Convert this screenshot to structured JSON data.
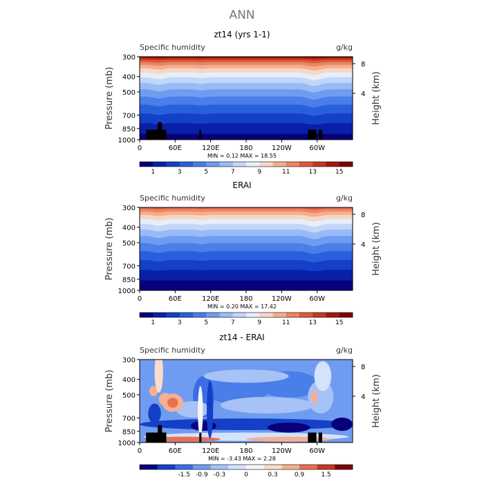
{
  "figure": {
    "title": "ANN"
  },
  "colors": {
    "seq": [
      "#08007a",
      "#0a1fa8",
      "#1440c8",
      "#2a5fdc",
      "#4a7ee8",
      "#6f9cf0",
      "#98bbf6",
      "#c2d6fa",
      "#e8eef8",
      "#f7d7c4",
      "#f2ae90",
      "#ec8563",
      "#dc5a3d",
      "#c53623",
      "#a5160f",
      "#7a0508"
    ],
    "diff": [
      "#08007a",
      "#1440c8",
      "#3c6de6",
      "#6f9cf0",
      "#a7c2f7",
      "#d4e2fb",
      "#f5f5f5",
      "#fadcc9",
      "#f4b093",
      "#e8704f",
      "#c83522",
      "#7a0508"
    ],
    "land": "#000000"
  },
  "labels": {
    "y_left": "Pressure (mb)",
    "y_right": "Height (km)",
    "variable": "Specific humidity",
    "units": "g/kg"
  },
  "chart_data": [
    {
      "type": "heatmap",
      "title": "zt14 (yrs 1-1)",
      "subtitle_left": "Specific humidity",
      "subtitle_right": "g/kg",
      "xlabel": "",
      "ylabel": "Pressure (mb)",
      "ylabel_right": "Height (km)",
      "x_ticks": [
        "0",
        "60E",
        "120E",
        "180",
        "120W",
        "60W"
      ],
      "y_ticks": [
        "300",
        "400",
        "500",
        "700",
        "850",
        "1000"
      ],
      "y_right_ticks": [
        "8",
        "4"
      ],
      "stats": "MIN =    0.12   MAX =   18.55",
      "colorbar_labels": [
        "1",
        "3",
        "5",
        "7",
        "9",
        "11",
        "13",
        "15"
      ],
      "has_land_mask": true,
      "kind": "model"
    },
    {
      "type": "heatmap",
      "title": "ERAI",
      "subtitle_left": "Specific humidity",
      "subtitle_right": "g/kg",
      "xlabel": "",
      "ylabel": "Pressure (mb)",
      "ylabel_right": "Height (km)",
      "x_ticks": [
        "0",
        "60E",
        "120E",
        "180",
        "120W",
        "60W"
      ],
      "y_ticks": [
        "300",
        "400",
        "500",
        "700",
        "850",
        "1000"
      ],
      "y_right_ticks": [
        "8",
        "4"
      ],
      "stats": "MIN =    0.20   MAX =   17.42",
      "colorbar_labels": [
        "1",
        "3",
        "5",
        "7",
        "9",
        "11",
        "13",
        "15"
      ],
      "has_land_mask": false,
      "kind": "obs"
    },
    {
      "type": "heatmap",
      "title": "zt14 - ERAI",
      "subtitle_left": "Specific humidity",
      "subtitle_right": "g/kg",
      "xlabel": "",
      "ylabel": "Pressure (mb)",
      "ylabel_right": "Height (km)",
      "x_ticks": [
        "0",
        "60E",
        "120E",
        "180",
        "120W",
        "60W"
      ],
      "y_ticks": [
        "300",
        "400",
        "500",
        "700",
        "850",
        "1000"
      ],
      "y_right_ticks": [
        "8",
        "4"
      ],
      "stats": "MIN =   -3.43   MAX =    2.28",
      "colorbar_labels": [
        "-1.5",
        "-0.9",
        "-0.3",
        "0",
        "0.3",
        "0.9",
        "1.5"
      ],
      "has_land_mask": true,
      "kind": "diff"
    }
  ]
}
